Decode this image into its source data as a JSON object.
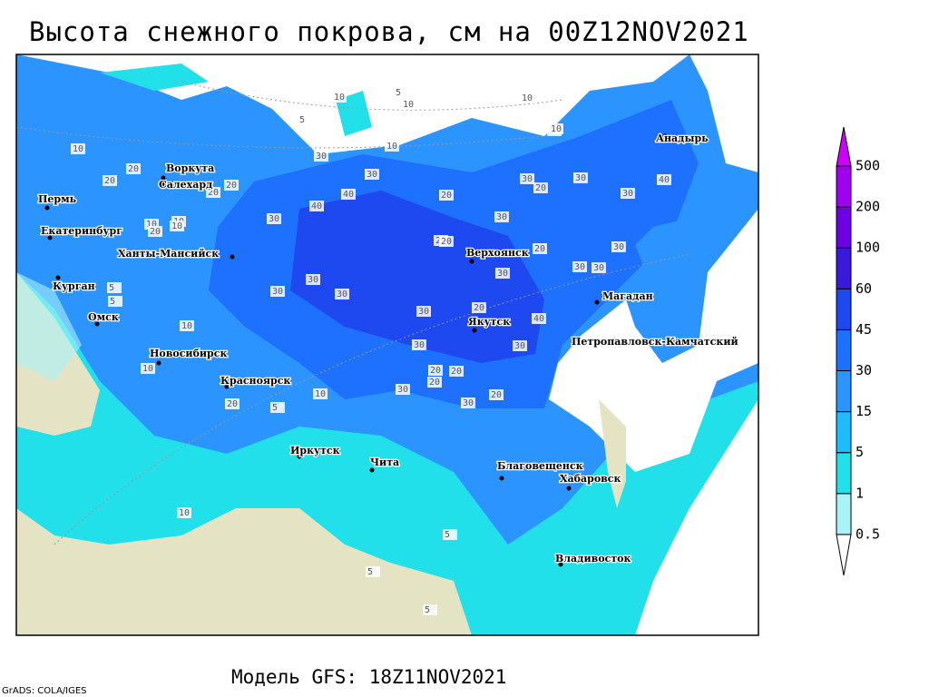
{
  "title": "Высота снежного покрова, см на 00Z12NOV2021",
  "map": {
    "cities": [
      "Воркута",
      "Салехард",
      "Пермь",
      "Екатеринбург",
      "Ханты-Мансийск",
      "Курган",
      "Омск",
      "Новосибирск",
      "Красноярск",
      "Иркутск",
      "Чита",
      "Благовещенск",
      "Хабаровск",
      "Владивосток",
      "Якутск",
      "Верхоянск",
      "Магадан",
      "Петропавловск-Камчатский",
      "Анадырь"
    ],
    "contour_labels": [
      10,
      5,
      10,
      5,
      10,
      5,
      10,
      20,
      20,
      10,
      20,
      20,
      30,
      30,
      40,
      40,
      30,
      20,
      30,
      30,
      20,
      30,
      30,
      40,
      30,
      30,
      30,
      30,
      30,
      20,
      20,
      30,
      30,
      20,
      20,
      30,
      20,
      30,
      10,
      10,
      10,
      20,
      10,
      5,
      5,
      10,
      10,
      5,
      5,
      10,
      5,
      5,
      10,
      5,
      20,
      20,
      20,
      30,
      40,
      30,
      20,
      30
    ]
  },
  "legend": {
    "levels": [
      0.5,
      1,
      5,
      15,
      30,
      45,
      60,
      100,
      200,
      500
    ],
    "colors": [
      "#ffffff",
      "#a8f2f8",
      "#22e0ea",
      "#1ebcff",
      "#2c94ff",
      "#1e70ff",
      "#1e48f0",
      "#3c18dc",
      "#6e00e4",
      "#a000f0",
      "#cc00ff"
    ]
  },
  "footer": "Модель GFS: 18Z11NOV2021",
  "credit": "GrADS: COLA/IGES"
}
